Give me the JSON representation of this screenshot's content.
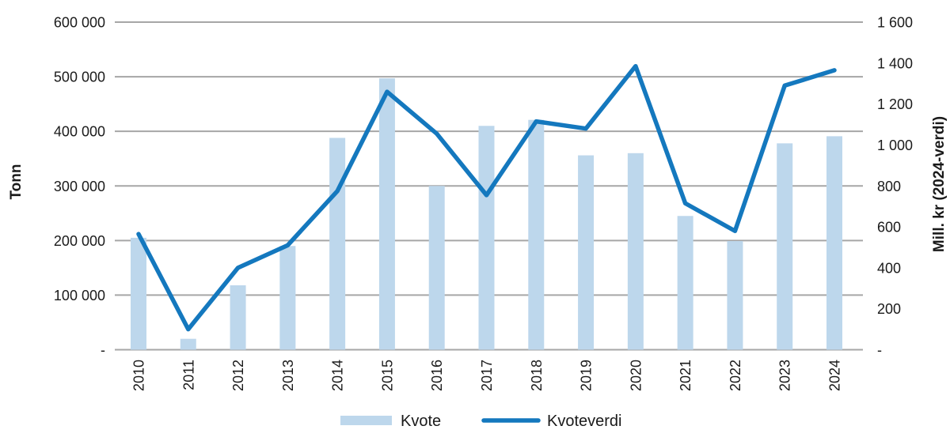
{
  "chart_data": {
    "type": "combo-bar-line",
    "title": "",
    "categories": [
      "2010",
      "2011",
      "2012",
      "2013",
      "2014",
      "2015",
      "2016",
      "2017",
      "2018",
      "2019",
      "2020",
      "2021",
      "2022",
      "2023",
      "2024"
    ],
    "series": [
      {
        "name": "Kvote",
        "type": "bar",
        "axis": "left",
        "color": "#BDD7EC",
        "values": [
          205000,
          20000,
          118000,
          190000,
          388000,
          497000,
          300000,
          410000,
          421000,
          356000,
          360000,
          245000,
          199000,
          378000,
          391000
        ]
      },
      {
        "name": "Kvoteverdi",
        "type": "line",
        "axis": "right",
        "color": "#1478BE",
        "values": [
          565,
          100,
          400,
          510,
          775,
          1260,
          1055,
          755,
          1115,
          1080,
          1385,
          715,
          580,
          1290,
          1365
        ]
      }
    ],
    "left_axis": {
      "title": "Tonn",
      "min": 0,
      "max": 600000,
      "step": 100000,
      "tick_labels": [
        "600 000",
        "500 000",
        "400 000",
        "300 000",
        "200 000",
        "100 000",
        "-"
      ]
    },
    "right_axis": {
      "title": "Mill. kr (2024-verdi)",
      "min": 0,
      "max": 1600,
      "step": 200,
      "tick_labels": [
        "1 600",
        "1 400",
        "1 200",
        "1 000",
        "800",
        "600",
        "400",
        "200",
        "-"
      ]
    },
    "legend": {
      "position": "bottom",
      "items": [
        {
          "label": "Kvote",
          "swatch": "bar"
        },
        {
          "label": "Kvoteverdi",
          "swatch": "line"
        }
      ]
    },
    "grid": {
      "horizontal": true,
      "color": "#A6A6A6"
    },
    "background": "#FFFFFF",
    "text_color": "#1A1A1A"
  }
}
